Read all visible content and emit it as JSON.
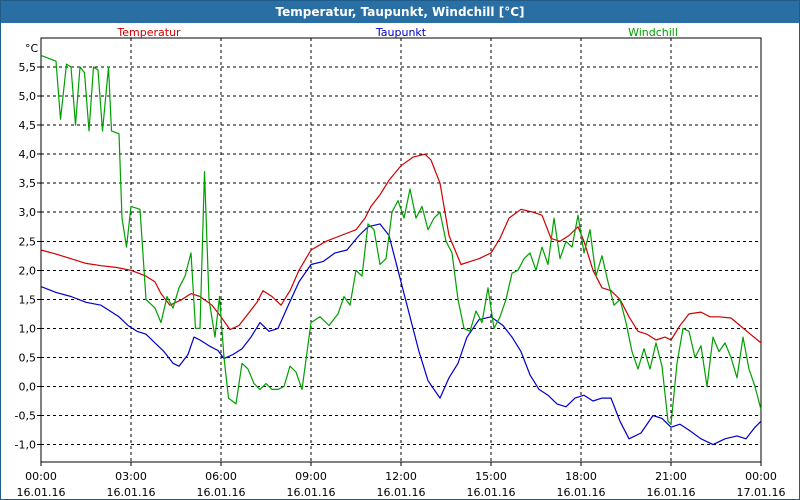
{
  "window": {
    "title": "Temperatur, Taupunkt, Windchill [°C]"
  },
  "colors": {
    "titlebar": "#2a6fa3",
    "grid": "#000000",
    "axis": "#000000"
  },
  "chart_data": {
    "type": "line",
    "title": "Temperatur, Taupunkt, Windchill [°C]",
    "ylabel": "°C",
    "ylim": [
      -1.3,
      6.0
    ],
    "xlim": [
      0,
      24
    ],
    "grid": true,
    "legend_position": "top",
    "yticks": [
      5.5,
      5.0,
      4.5,
      4.0,
      3.5,
      3.0,
      2.5,
      2.0,
      1.5,
      1.0,
      0.5,
      0.0,
      -0.5,
      -1.0
    ],
    "ytick_labels": [
      "5,5",
      "5,0",
      "4,5",
      "4,0",
      "3,5",
      "3,0",
      "2,5",
      "2,0",
      "1,5",
      "1,0",
      "0,5",
      "0,0",
      "-0,5",
      "-1,0"
    ],
    "xticks": [
      0,
      3,
      6,
      9,
      12,
      15,
      18,
      21,
      24
    ],
    "xtick_labels": [
      [
        "00:00",
        "16.01.16"
      ],
      [
        "03:00",
        "16.01.16"
      ],
      [
        "06:00",
        "16.01.16"
      ],
      [
        "09:00",
        "16.01.16"
      ],
      [
        "12:00",
        "16.01.16"
      ],
      [
        "15:00",
        "16.01.16"
      ],
      [
        "18:00",
        "16.01.16"
      ],
      [
        "21:00",
        "16.01.16"
      ],
      [
        "00:00",
        "17.01.16"
      ]
    ],
    "series": [
      {
        "name": "Temperatur",
        "color": "#d00000",
        "points": [
          [
            0,
            2.35
          ],
          [
            0.5,
            2.28
          ],
          [
            1,
            2.2
          ],
          [
            1.5,
            2.12
          ],
          [
            2,
            2.08
          ],
          [
            2.5,
            2.05
          ],
          [
            3,
            2.0
          ],
          [
            3.5,
            1.9
          ],
          [
            3.8,
            1.8
          ],
          [
            4,
            1.6
          ],
          [
            4.3,
            1.4
          ],
          [
            4.7,
            1.5
          ],
          [
            5,
            1.6
          ],
          [
            5.3,
            1.55
          ],
          [
            5.7,
            1.4
          ],
          [
            6,
            1.2
          ],
          [
            6.3,
            0.98
          ],
          [
            6.6,
            1.05
          ],
          [
            6.9,
            1.25
          ],
          [
            7.2,
            1.45
          ],
          [
            7.4,
            1.65
          ],
          [
            7.7,
            1.55
          ],
          [
            8,
            1.4
          ],
          [
            8.3,
            1.65
          ],
          [
            8.6,
            2.0
          ],
          [
            9,
            2.35
          ],
          [
            9.5,
            2.5
          ],
          [
            10,
            2.6
          ],
          [
            10.5,
            2.7
          ],
          [
            10.8,
            2.9
          ],
          [
            11,
            3.1
          ],
          [
            11.3,
            3.3
          ],
          [
            11.6,
            3.55
          ],
          [
            12,
            3.8
          ],
          [
            12.4,
            3.95
          ],
          [
            12.8,
            4.0
          ],
          [
            13,
            3.9
          ],
          [
            13.3,
            3.5
          ],
          [
            13.6,
            2.6
          ],
          [
            14,
            2.1
          ],
          [
            14.3,
            2.15
          ],
          [
            14.6,
            2.2
          ],
          [
            15,
            2.3
          ],
          [
            15.3,
            2.55
          ],
          [
            15.6,
            2.9
          ],
          [
            16,
            3.05
          ],
          [
            16.4,
            3.0
          ],
          [
            16.7,
            2.95
          ],
          [
            17,
            2.55
          ],
          [
            17.3,
            2.5
          ],
          [
            17.6,
            2.6
          ],
          [
            17.9,
            2.75
          ],
          [
            18.1,
            2.5
          ],
          [
            18.4,
            2.0
          ],
          [
            18.7,
            1.7
          ],
          [
            19,
            1.65
          ],
          [
            19.3,
            1.5
          ],
          [
            19.6,
            1.2
          ],
          [
            19.9,
            0.95
          ],
          [
            20.2,
            0.9
          ],
          [
            20.5,
            0.8
          ],
          [
            20.8,
            0.85
          ],
          [
            21,
            0.8
          ],
          [
            21.3,
            1.05
          ],
          [
            21.6,
            1.25
          ],
          [
            22,
            1.28
          ],
          [
            22.3,
            1.2
          ],
          [
            22.6,
            1.2
          ],
          [
            23,
            1.18
          ],
          [
            23.3,
            1.05
          ],
          [
            23.6,
            0.92
          ],
          [
            24,
            0.75
          ]
        ]
      },
      {
        "name": "Taupunkt",
        "color": "#0000c8",
        "points": [
          [
            0,
            1.72
          ],
          [
            0.5,
            1.62
          ],
          [
            1,
            1.55
          ],
          [
            1.5,
            1.45
          ],
          [
            2,
            1.4
          ],
          [
            2.3,
            1.3
          ],
          [
            2.6,
            1.2
          ],
          [
            2.9,
            1.05
          ],
          [
            3.2,
            0.95
          ],
          [
            3.5,
            0.9
          ],
          [
            3.8,
            0.75
          ],
          [
            4.1,
            0.6
          ],
          [
            4.4,
            0.4
          ],
          [
            4.6,
            0.35
          ],
          [
            4.9,
            0.55
          ],
          [
            5.1,
            0.85
          ],
          [
            5.3,
            0.8
          ],
          [
            5.6,
            0.7
          ],
          [
            5.9,
            0.62
          ],
          [
            6.1,
            0.48
          ],
          [
            6.4,
            0.55
          ],
          [
            6.7,
            0.65
          ],
          [
            7,
            0.85
          ],
          [
            7.3,
            1.1
          ],
          [
            7.6,
            0.95
          ],
          [
            7.9,
            1.0
          ],
          [
            8.2,
            1.35
          ],
          [
            8.6,
            1.8
          ],
          [
            9,
            2.1
          ],
          [
            9.4,
            2.15
          ],
          [
            9.8,
            2.3
          ],
          [
            10.2,
            2.35
          ],
          [
            10.6,
            2.6
          ],
          [
            10.9,
            2.75
          ],
          [
            11.3,
            2.8
          ],
          [
            11.6,
            2.6
          ],
          [
            11.9,
            2.0
          ],
          [
            12.3,
            1.2
          ],
          [
            12.6,
            0.6
          ],
          [
            12.9,
            0.1
          ],
          [
            13.3,
            -0.2
          ],
          [
            13.6,
            0.15
          ],
          [
            13.9,
            0.4
          ],
          [
            14.2,
            0.85
          ],
          [
            14.6,
            1.15
          ],
          [
            15,
            1.2
          ],
          [
            15.4,
            1.05
          ],
          [
            15.7,
            0.85
          ],
          [
            16,
            0.6
          ],
          [
            16.3,
            0.2
          ],
          [
            16.6,
            -0.05
          ],
          [
            16.9,
            -0.15
          ],
          [
            17.2,
            -0.3
          ],
          [
            17.5,
            -0.35
          ],
          [
            17.8,
            -0.2
          ],
          [
            18.1,
            -0.15
          ],
          [
            18.4,
            -0.25
          ],
          [
            18.7,
            -0.2
          ],
          [
            19,
            -0.2
          ],
          [
            19.3,
            -0.6
          ],
          [
            19.6,
            -0.9
          ],
          [
            20,
            -0.8
          ],
          [
            20.4,
            -0.5
          ],
          [
            20.7,
            -0.55
          ],
          [
            21,
            -0.7
          ],
          [
            21.3,
            -0.65
          ],
          [
            21.6,
            -0.75
          ],
          [
            22,
            -0.9
          ],
          [
            22.4,
            -1.0
          ],
          [
            22.8,
            -0.9
          ],
          [
            23.2,
            -0.85
          ],
          [
            23.5,
            -0.9
          ],
          [
            23.8,
            -0.7
          ],
          [
            24,
            -0.6
          ]
        ]
      },
      {
        "name": "Windchill",
        "color": "#00a000",
        "points": [
          [
            0,
            5.7
          ],
          [
            0.5,
            5.6
          ],
          [
            0.65,
            4.6
          ],
          [
            0.85,
            5.55
          ],
          [
            1.0,
            5.5
          ],
          [
            1.15,
            4.5
          ],
          [
            1.3,
            5.5
          ],
          [
            1.45,
            5.4
          ],
          [
            1.6,
            4.4
          ],
          [
            1.75,
            5.5
          ],
          [
            1.9,
            5.45
          ],
          [
            2.05,
            4.4
          ],
          [
            2.25,
            5.5
          ],
          [
            2.35,
            4.4
          ],
          [
            2.6,
            4.35
          ],
          [
            2.7,
            2.9
          ],
          [
            2.85,
            2.4
          ],
          [
            3.0,
            3.1
          ],
          [
            3.3,
            3.05
          ],
          [
            3.5,
            1.5
          ],
          [
            3.8,
            1.35
          ],
          [
            4.0,
            1.1
          ],
          [
            4.2,
            1.55
          ],
          [
            4.4,
            1.35
          ],
          [
            4.6,
            1.7
          ],
          [
            4.8,
            1.9
          ],
          [
            5.0,
            2.3
          ],
          [
            5.15,
            1.0
          ],
          [
            5.3,
            1.0
          ],
          [
            5.45,
            3.7
          ],
          [
            5.6,
            1.5
          ],
          [
            5.8,
            0.85
          ],
          [
            5.95,
            1.55
          ],
          [
            6.1,
            0.5
          ],
          [
            6.25,
            -0.2
          ],
          [
            6.5,
            -0.3
          ],
          [
            6.7,
            0.4
          ],
          [
            6.9,
            0.3
          ],
          [
            7.1,
            0.05
          ],
          [
            7.3,
            -0.05
          ],
          [
            7.5,
            0.05
          ],
          [
            7.7,
            -0.05
          ],
          [
            7.9,
            -0.05
          ],
          [
            8.1,
            0.0
          ],
          [
            8.3,
            0.35
          ],
          [
            8.5,
            0.25
          ],
          [
            8.7,
            -0.05
          ],
          [
            9.0,
            1.1
          ],
          [
            9.3,
            1.2
          ],
          [
            9.6,
            1.05
          ],
          [
            9.9,
            1.25
          ],
          [
            10.1,
            1.55
          ],
          [
            10.3,
            1.4
          ],
          [
            10.5,
            2.0
          ],
          [
            10.7,
            1.9
          ],
          [
            10.9,
            2.8
          ],
          [
            11.1,
            2.7
          ],
          [
            11.3,
            2.1
          ],
          [
            11.5,
            2.2
          ],
          [
            11.7,
            3.0
          ],
          [
            11.9,
            3.2
          ],
          [
            12.1,
            2.9
          ],
          [
            12.3,
            3.4
          ],
          [
            12.5,
            2.9
          ],
          [
            12.7,
            3.1
          ],
          [
            12.9,
            2.7
          ],
          [
            13.1,
            2.9
          ],
          [
            13.3,
            3.0
          ],
          [
            13.5,
            2.5
          ],
          [
            13.7,
            2.3
          ],
          [
            13.9,
            1.5
          ],
          [
            14.1,
            1.0
          ],
          [
            14.3,
            0.95
          ],
          [
            14.5,
            1.3
          ],
          [
            14.7,
            1.1
          ],
          [
            14.9,
            1.7
          ],
          [
            15.1,
            1.0
          ],
          [
            15.3,
            1.2
          ],
          [
            15.5,
            1.5
          ],
          [
            15.7,
            1.95
          ],
          [
            15.9,
            2.0
          ],
          [
            16.1,
            2.2
          ],
          [
            16.3,
            2.3
          ],
          [
            16.5,
            2.0
          ],
          [
            16.7,
            2.4
          ],
          [
            16.9,
            2.1
          ],
          [
            17.1,
            2.9
          ],
          [
            17.3,
            2.2
          ],
          [
            17.5,
            2.5
          ],
          [
            17.7,
            2.4
          ],
          [
            17.9,
            2.95
          ],
          [
            18.1,
            2.3
          ],
          [
            18.3,
            2.7
          ],
          [
            18.5,
            1.9
          ],
          [
            18.7,
            2.25
          ],
          [
            18.9,
            1.8
          ],
          [
            19.1,
            1.4
          ],
          [
            19.3,
            1.5
          ],
          [
            19.5,
            1.1
          ],
          [
            19.7,
            0.6
          ],
          [
            19.9,
            0.3
          ],
          [
            20.1,
            0.65
          ],
          [
            20.3,
            0.3
          ],
          [
            20.5,
            0.75
          ],
          [
            20.7,
            0.35
          ],
          [
            20.9,
            -0.6
          ],
          [
            21.0,
            -0.65
          ],
          [
            21.2,
            0.4
          ],
          [
            21.4,
            1.0
          ],
          [
            21.6,
            0.95
          ],
          [
            21.8,
            0.5
          ],
          [
            22.0,
            0.7
          ],
          [
            22.2,
            0.0
          ],
          [
            22.4,
            0.85
          ],
          [
            22.6,
            0.6
          ],
          [
            22.8,
            0.75
          ],
          [
            23.0,
            0.5
          ],
          [
            23.2,
            0.15
          ],
          [
            23.4,
            0.85
          ],
          [
            23.6,
            0.3
          ],
          [
            23.8,
            0.0
          ],
          [
            24.0,
            -0.4
          ]
        ]
      }
    ]
  }
}
